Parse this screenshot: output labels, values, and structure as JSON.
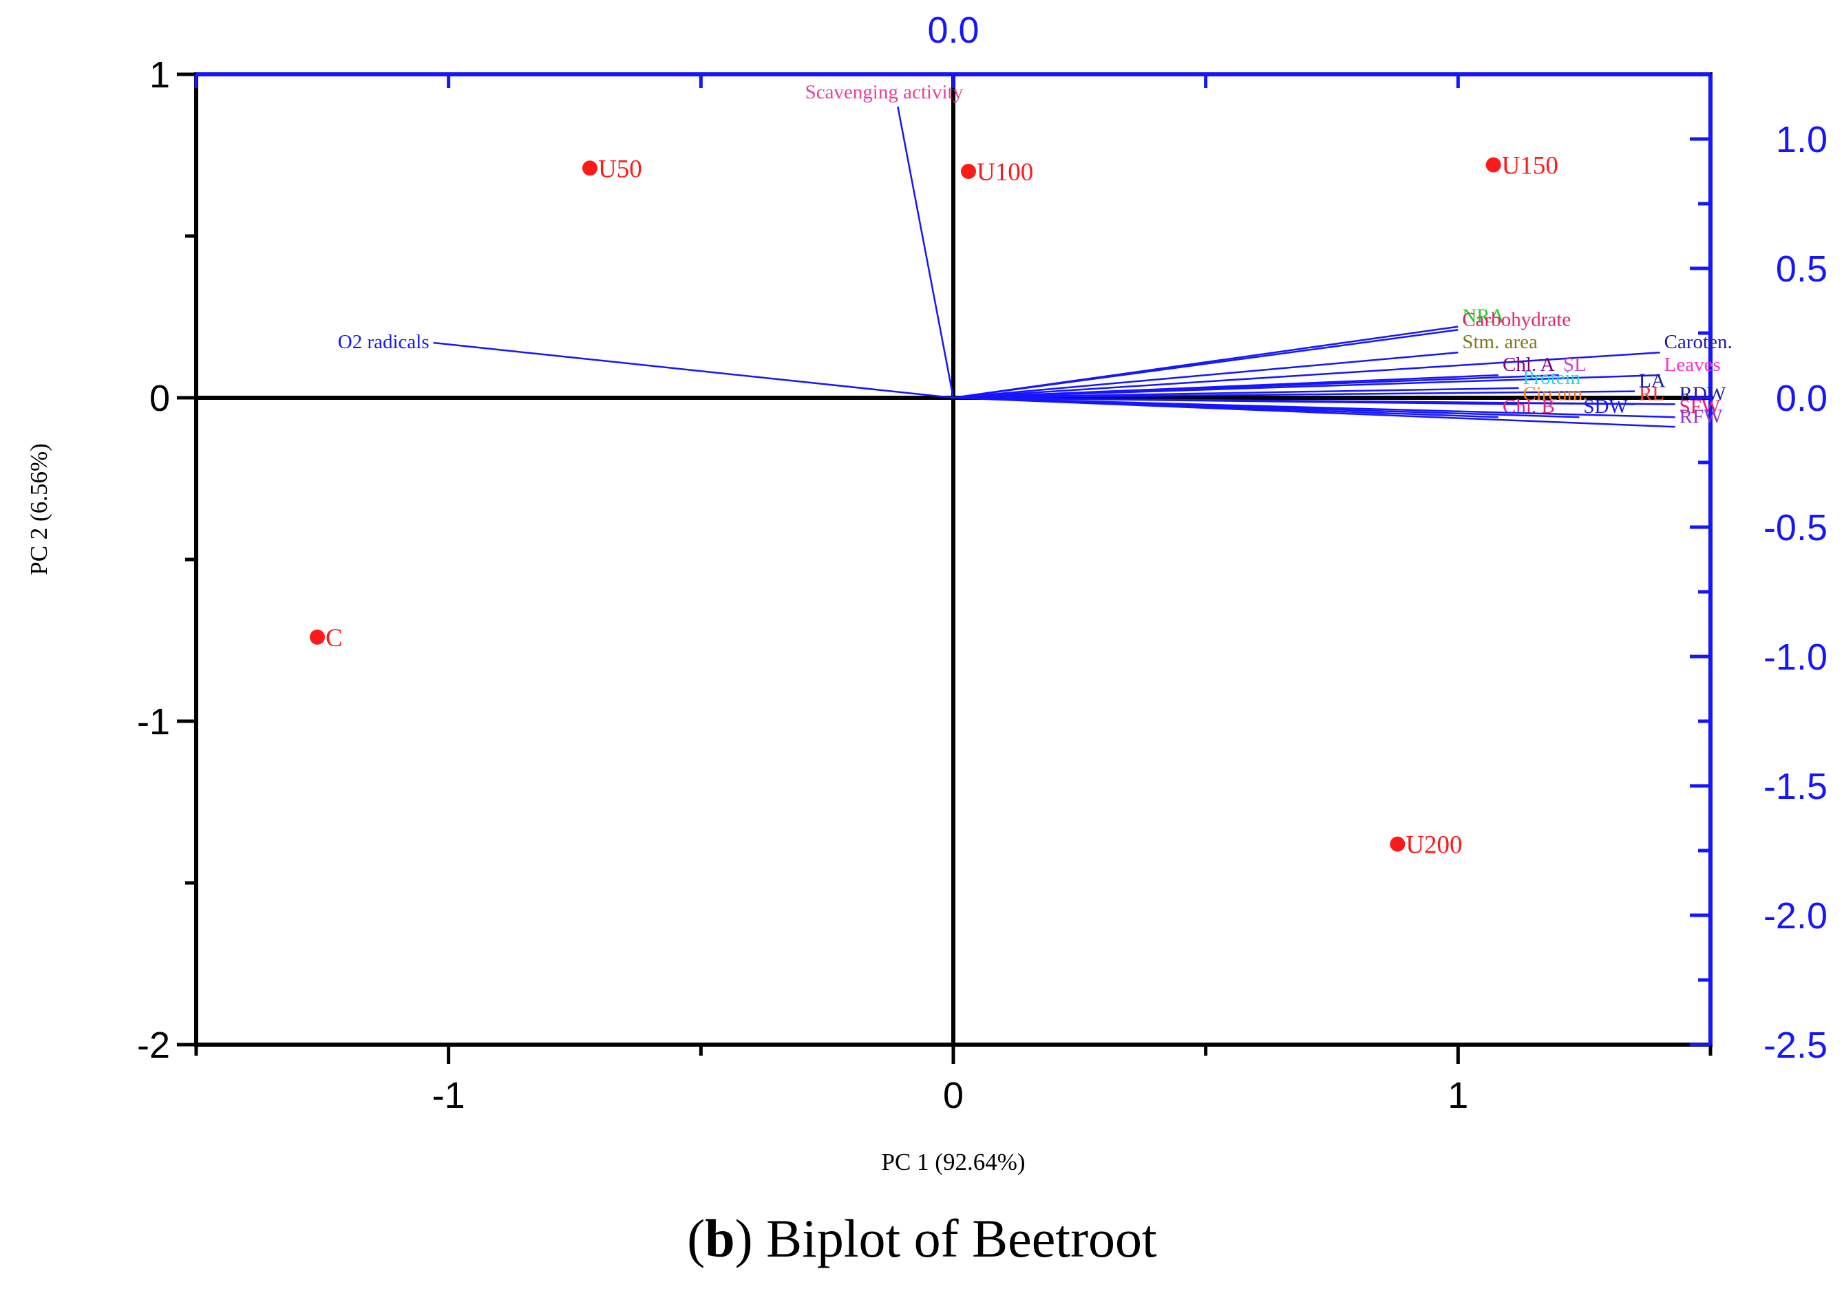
{
  "chart_data": {
    "type": "biplot",
    "top_axis_label": "0.0",
    "xlabel": "PC 1 (92.64%)",
    "ylabel": "PC 2 (6.56%)",
    "xlim": [
      -1.5,
      1.5
    ],
    "ylim": [
      -2,
      1
    ],
    "x_ticks": [
      -1,
      0,
      1
    ],
    "x_tick_labels": [
      "-1",
      "0",
      "1"
    ],
    "y_ticks": [
      1,
      0,
      -1,
      -2
    ],
    "y_tick_labels": [
      "1",
      "0",
      "-1",
      "-2"
    ],
    "right_axis": {
      "ylim": [
        -2.5,
        1.25
      ],
      "ticks": [
        1.0,
        0.5,
        0.0,
        -0.5,
        -1.0,
        -1.5,
        -2.0,
        -2.5
      ],
      "tick_labels": [
        "1.0",
        "0.5",
        "0.0",
        "-0.5",
        "-1.0",
        "-1.5",
        "-2.0",
        "-2.5"
      ]
    },
    "scores": [
      {
        "name": "U50",
        "x": -0.72,
        "y": 0.71
      },
      {
        "name": "U100",
        "x": 0.03,
        "y": 0.7
      },
      {
        "name": "U150",
        "x": 1.07,
        "y": 0.72
      },
      {
        "name": "C",
        "x": -1.26,
        "y": -0.74
      },
      {
        "name": "U200",
        "x": 0.88,
        "y": -1.38
      }
    ],
    "loadings": [
      {
        "name": "Scavenging activity",
        "x": -0.11,
        "y": 0.9,
        "color": "#e8409a"
      },
      {
        "name": "O2 radicals",
        "x": -1.03,
        "y": 0.17,
        "color": "#1515ff"
      },
      {
        "name": "NRA",
        "x": 1.0,
        "y": 0.22,
        "color": "#22cc22"
      },
      {
        "name": "Carbohydrate",
        "x": 1.0,
        "y": 0.21,
        "color": "#e8206a"
      },
      {
        "name": "Stm. area",
        "x": 1.0,
        "y": 0.14,
        "color": "#7a7a1a"
      },
      {
        "name": "Caroten.",
        "x": 1.4,
        "y": 0.14,
        "color": "#1a1aaa"
      },
      {
        "name": "Chl. A",
        "x": 1.08,
        "y": 0.07,
        "color": "#800080"
      },
      {
        "name": "SL",
        "x": 1.2,
        "y": 0.07,
        "color": "#cc44cc"
      },
      {
        "name": "Leaves",
        "x": 1.4,
        "y": 0.07,
        "color": "#ff33cc"
      },
      {
        "name": "Protein",
        "x": 1.12,
        "y": 0.03,
        "color": "#22d8ee"
      },
      {
        "name": "LA",
        "x": 1.35,
        "y": 0.02,
        "color": "#1a1aaa"
      },
      {
        "name": "Circum.",
        "x": 1.12,
        "y": -0.02,
        "color": "#ff7f00"
      },
      {
        "name": "RL",
        "x": 1.35,
        "y": -0.02,
        "color": "#ff3333"
      },
      {
        "name": "RDW",
        "x": 1.43,
        "y": -0.02,
        "color": "#1a1aaa"
      },
      {
        "name": "Chl. B",
        "x": 1.08,
        "y": -0.06,
        "color": "#e8206a"
      },
      {
        "name": "SDW",
        "x": 1.24,
        "y": -0.06,
        "color": "#1515ff"
      },
      {
        "name": "SFW",
        "x": 1.43,
        "y": -0.06,
        "color": "#e8206a"
      },
      {
        "name": "RFW",
        "x": 1.43,
        "y": -0.09,
        "color": "#9933cc"
      }
    ]
  },
  "caption": {
    "letter": "b",
    "text": " Biplot of Beetroot"
  }
}
